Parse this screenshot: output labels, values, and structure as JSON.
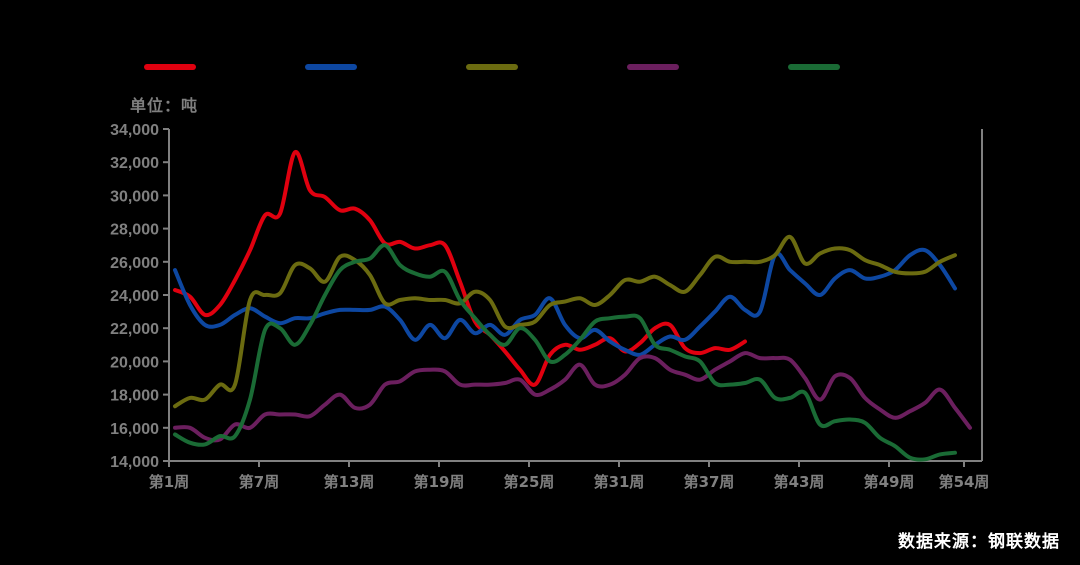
{
  "chart_data": {
    "type": "line",
    "title": "",
    "unit_label": "单位：吨",
    "xlabel": "",
    "ylabel": "",
    "ylim": [
      14000,
      34000
    ],
    "yticks": [
      14000,
      16000,
      18000,
      20000,
      22000,
      24000,
      26000,
      28000,
      30000,
      32000,
      34000
    ],
    "ytick_labels": [
      "14,000",
      "16,000",
      "18,000",
      "20,000",
      "22,000",
      "24,000",
      "26,000",
      "28,000",
      "30,000",
      "32,000",
      "34,000"
    ],
    "xlim": [
      1,
      55.2
    ],
    "xticks": [
      1,
      7,
      13,
      19,
      25,
      31,
      37,
      43,
      49,
      54
    ],
    "xtick_labels": [
      "第1周",
      "第7周",
      "第13周",
      "第19周",
      "第25周",
      "第31周",
      "第37周",
      "第43周",
      "第49周",
      "第54周"
    ],
    "grid": false,
    "legend_position": "top",
    "series": [
      {
        "name": "",
        "color": "#e0000f",
        "values": [
          24300,
          23900,
          22800,
          23400,
          24900,
          26700,
          28800,
          28900,
          32600,
          30300,
          29900,
          29100,
          29200,
          28500,
          27100,
          27200,
          26800,
          27000,
          27000,
          24800,
          22400,
          21600,
          20600,
          19500,
          18600,
          20400,
          21000,
          20700,
          21000,
          21400,
          20600,
          21100,
          22000,
          22200,
          20800,
          20500,
          20800,
          20700,
          21200
        ]
      },
      {
        "name": "",
        "color": "#0d47a1",
        "values": [
          25500,
          23400,
          22200,
          22200,
          22800,
          23200,
          22700,
          22300,
          22600,
          22600,
          22900,
          23100,
          23100,
          23100,
          23300,
          22500,
          21300,
          22200,
          21400,
          22500,
          21700,
          22200,
          21600,
          22500,
          22800,
          23800,
          22200,
          21400,
          21900,
          21200,
          20700,
          20400,
          21000,
          21500,
          21300,
          22100,
          23000,
          23900,
          23100,
          23000,
          26400,
          25500,
          24700,
          24000,
          25000,
          25500,
          25000,
          25100,
          25500,
          26400,
          26700,
          25800,
          24400
        ]
      },
      {
        "name": "",
        "color": "#6b6b10",
        "values": [
          17300,
          17800,
          17700,
          18600,
          18600,
          23700,
          24000,
          24100,
          25800,
          25600,
          24800,
          26300,
          26100,
          25200,
          23500,
          23700,
          23800,
          23700,
          23700,
          23500,
          24200,
          23700,
          22100,
          22200,
          22400,
          23400,
          23600,
          23800,
          23400,
          24000,
          24900,
          24800,
          25100,
          24600,
          24200,
          25200,
          26300,
          26000,
          26000,
          26000,
          26400,
          27500,
          25900,
          26500,
          26800,
          26700,
          26100,
          25800,
          25400,
          25300,
          25400,
          26000,
          26400
        ]
      },
      {
        "name": "",
        "color": "#6b1f5e",
        "values": [
          16000,
          16000,
          15400,
          15300,
          16200,
          16000,
          16800,
          16800,
          16800,
          16700,
          17400,
          18000,
          17200,
          17400,
          18600,
          18800,
          19400,
          19500,
          19400,
          18600,
          18600,
          18600,
          18700,
          18900,
          18000,
          18300,
          18900,
          19800,
          18600,
          18600,
          19200,
          20200,
          20200,
          19500,
          19200,
          18900,
          19500,
          20000,
          20500,
          20200,
          20200,
          20100,
          19000,
          17700,
          19100,
          19000,
          17800,
          17100,
          16600,
          17000,
          17500,
          18300,
          17200,
          16000
        ]
      },
      {
        "name": "",
        "color": "#1a6b35",
        "values": [
          15600,
          15100,
          15000,
          15500,
          15500,
          17700,
          21900,
          22000,
          21000,
          22200,
          24000,
          25500,
          26000,
          26200,
          27000,
          25800,
          25300,
          25100,
          25400,
          23700,
          22600,
          21600,
          21000,
          22000,
          21300,
          20000,
          20400,
          21300,
          22400,
          22600,
          22700,
          22600,
          21000,
          20700,
          20300,
          20000,
          18700,
          18600,
          18700,
          18900,
          17800,
          17800,
          18100,
          16200,
          16400,
          16500,
          16300,
          15400,
          14900,
          14200,
          14100,
          14400,
          14500
        ]
      }
    ]
  },
  "source": "数据来源：钢联数据"
}
